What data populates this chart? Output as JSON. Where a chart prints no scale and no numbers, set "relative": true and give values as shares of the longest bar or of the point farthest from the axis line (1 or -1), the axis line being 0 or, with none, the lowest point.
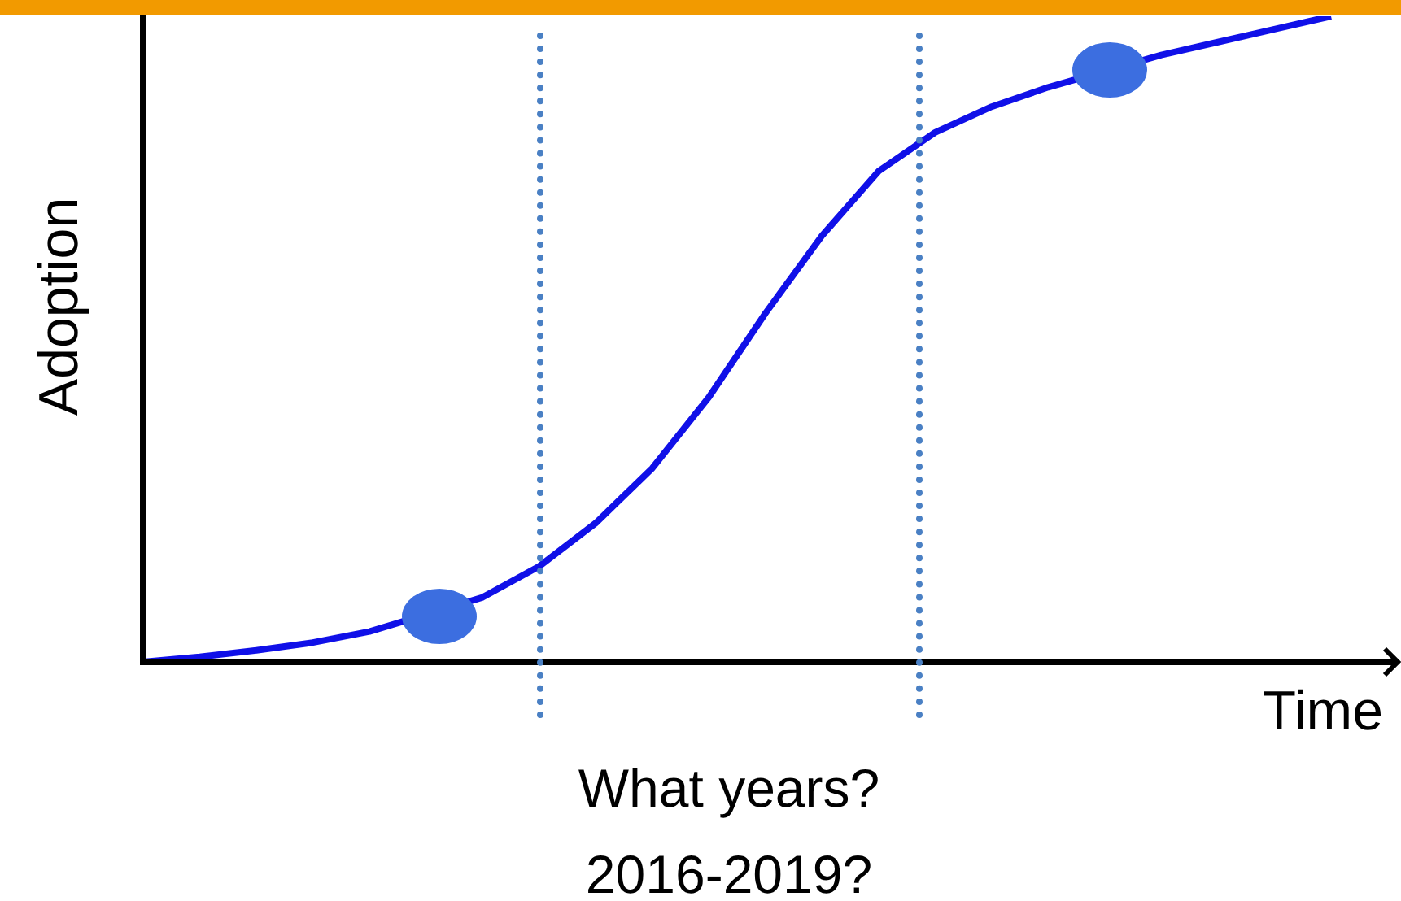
{
  "chart_data": {
    "type": "line",
    "relative": true,
    "xlabel": "Time",
    "ylabel": "Adoption",
    "categories": [
      null,
      null,
      null,
      null,
      null,
      null,
      null,
      null,
      null,
      null,
      null,
      null,
      null,
      null,
      null,
      null,
      null,
      null,
      null,
      null,
      null,
      null
    ],
    "series": [
      {
        "color": "#1010e8",
        "values": [
          0,
          0.008,
          0.018,
          0.03,
          0.047,
          null,
          0.1,
          0.148,
          0.215,
          0.3,
          0.41,
          0.54,
          0.66,
          0.76,
          0.82,
          0.86,
          0.89,
          null,
          0.94,
          0.96,
          0.98,
          1
        ]
      }
    ],
    "annotations": [
      "What years?",
      "2016-2019?"
    ],
    "legend": false
  }
}
